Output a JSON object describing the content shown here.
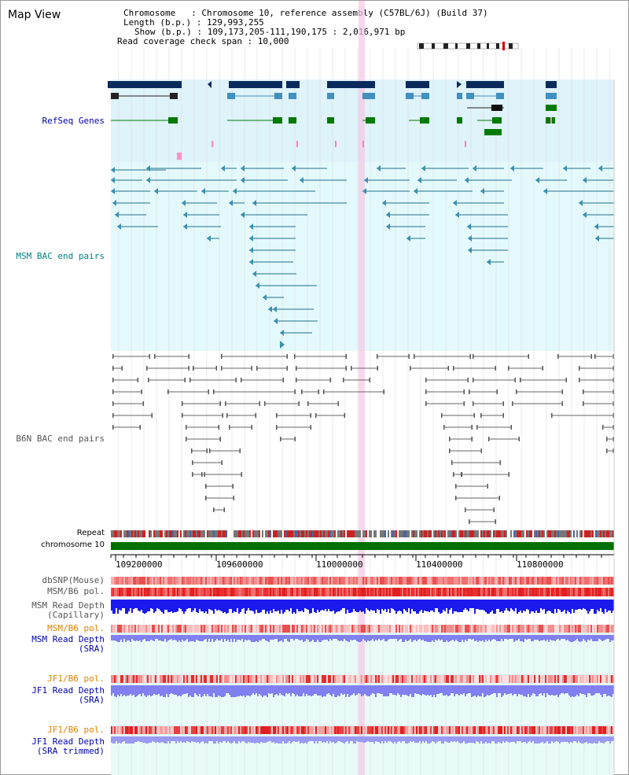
{
  "title": "Map View",
  "info": {
    "chromosome": "Chromosome   : Chromosome 10, reference assembly (C57BL/6J) (Build 37)",
    "length": "Length (b.p.) : 129,993,255",
    "show": "Show (b.p.) : 109,173,205-111,190,175 : 2,016,971 bp",
    "span": "Read coverage check span : 10,000"
  },
  "tracks": {
    "refseq": "RefSeq Genes",
    "msm_bac": "MSM BAC end pairs",
    "b6n_bac": "B6N BAC end pairs",
    "repeat": "Repeat",
    "chromosome": "chromosome 10",
    "dbsnp": "dbSNP(Mouse)",
    "msm_pol": "MSM/B6 pol.",
    "msm_depth_cap_1": "MSM Read Depth",
    "msm_depth_cap_2": "(Capillary)",
    "msm_pol2": "MSM/B6 pol.",
    "msm_depth_sra_1": "MSM Read Depth",
    "msm_depth_sra_2": "(SRA)",
    "jf1_pol": "JF1/B6 pol.",
    "jf1_depth_sra_1": "JF1 Read Depth",
    "jf1_depth_sra_2": "(SRA)",
    "jf1_pol2": "JF1/B6 pol.",
    "jf1_depth_trim_1": "JF1 Read Depth",
    "jf1_depth_trim_2": "(SRA trimmed)"
  },
  "axis_ticks": [
    "109200000",
    "109600000",
    "110000000",
    "110400000",
    "110800000"
  ],
  "colors": {
    "refseq_bg": "#dff3fb",
    "msm_bg": "#e4f9fb",
    "gene_dark": "#0b2a5c",
    "gene_mid": "#4090c0",
    "gene_green": "#007a00",
    "msm_line": "#1f6f8b",
    "b6n_line": "#666666",
    "chrom_green": "#007000",
    "depth_blue": "#1a1aee",
    "depth_light": "#8080f0",
    "pol_red": "#e83030",
    "highlight": "#f5c6e4"
  }
}
